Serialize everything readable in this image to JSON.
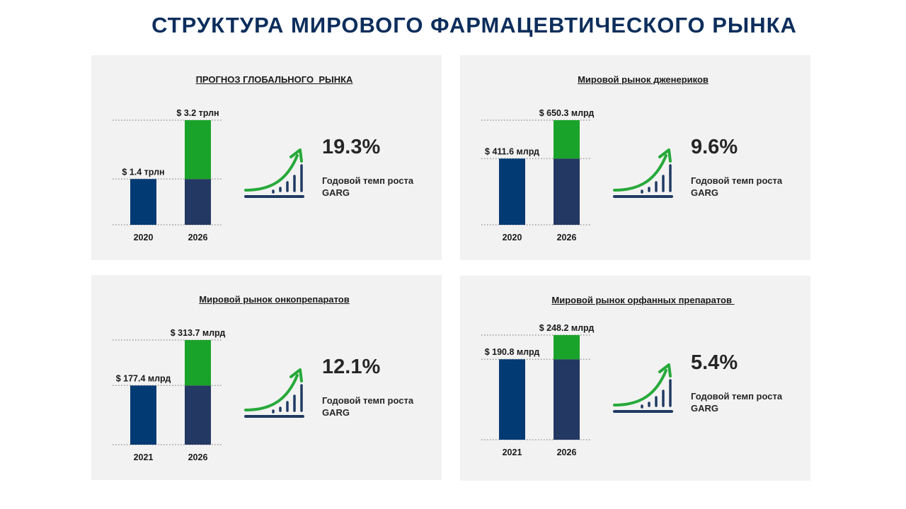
{
  "page": {
    "title": "СТРУКТУРА  МИРОВОГО ФАРМАЦЕВТИЧЕСКОГО РЫНКА"
  },
  "colors": {
    "base_bar": "#023a73",
    "stack_bar": "#233862",
    "growth_bar": "#1aa32a",
    "icon_dark": "#1f3b63",
    "icon_green": "#27a93a"
  },
  "panels": [
    {
      "title": "ПРОГНОЗ ГЛОБАЛЬНОГО  РЫНКА",
      "growth_value": "19.3%",
      "growth_label": "Годовой темп роста",
      "growth_sub": "GARG"
    },
    {
      "title": "Мировой рынок дженериков",
      "growth_value": "9.6%",
      "growth_label": "Годовой темп роста",
      "growth_sub": "GARG"
    },
    {
      "title": "Мировой рынок онкопрепаратов",
      "growth_value": "12.1%",
      "growth_label": "Годовой темп роста",
      "growth_sub": "GARG"
    },
    {
      "title": "Мировой рынок орфанных препаратов ",
      "growth_value": "5.4%",
      "growth_label": "Годовой темп роста",
      "growth_sub": "GARG"
    }
  ],
  "chart_data": [
    {
      "type": "bar",
      "title": "ПРОГНОЗ ГЛОБАЛЬНОГО  РЫНКА",
      "categories": [
        "2020",
        "2026"
      ],
      "values": [
        1.4,
        3.2
      ],
      "value_labels": [
        "$ 1.4 трлн",
        "$ 3.2 трлн"
      ],
      "ylim": [
        0,
        3.2
      ],
      "grid": false
    },
    {
      "type": "bar",
      "title": "Мировой рынок дженериков",
      "categories": [
        "2020",
        "2026"
      ],
      "values": [
        411.6,
        650.3
      ],
      "value_labels": [
        "$ 411.6  млрд",
        "$ 650.3  млрд"
      ],
      "ylim": [
        0,
        650.3
      ],
      "grid": false
    },
    {
      "type": "bar",
      "title": "Мировой рынок онкопрепаратов",
      "categories": [
        "2021",
        "2026"
      ],
      "values": [
        177.4,
        313.7
      ],
      "value_labels": [
        "$ 177.4  млрд",
        "$ 313.7  млрд"
      ],
      "ylim": [
        0,
        313.7
      ],
      "grid": false
    },
    {
      "type": "bar",
      "title": "Мировой рынок орфанных препаратов",
      "categories": [
        "2021",
        "2026"
      ],
      "values": [
        190.8,
        248.2
      ],
      "value_labels": [
        "$ 190.8  млрд",
        "$ 248.2  млрд"
      ],
      "ylim": [
        0,
        248.2
      ],
      "grid": false
    }
  ]
}
